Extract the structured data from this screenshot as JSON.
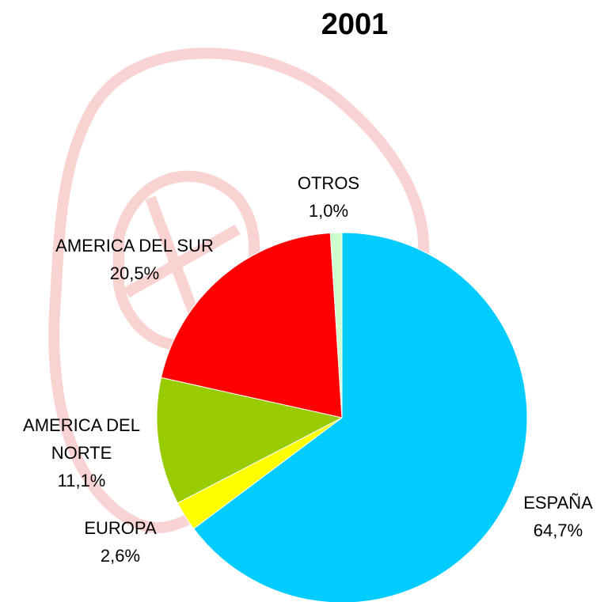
{
  "chart_data": {
    "type": "pie",
    "title": "2001",
    "categories": [
      "ESPAÑA",
      "EUROPA",
      "AMERICA DEL NORTE",
      "AMERICA DEL SUR",
      "OTROS"
    ],
    "values": [
      64.7,
      2.6,
      11.1,
      20.5,
      1.0
    ],
    "value_labels": [
      "64,7%",
      "2,6%",
      "11,1%",
      "20,5%",
      "1,0%"
    ],
    "colors": [
      "#00ccff",
      "#ffff00",
      "#99cc00",
      "#ff0000",
      "#ccffcc"
    ]
  }
}
